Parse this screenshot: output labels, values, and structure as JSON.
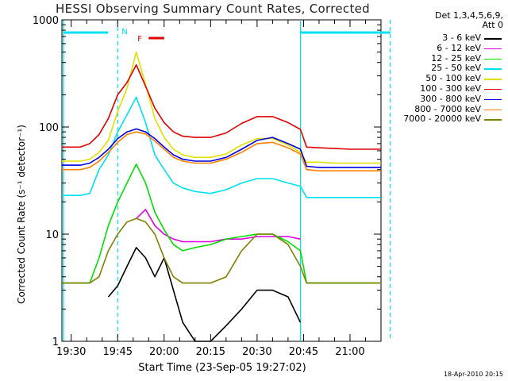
{
  "chart_data": {
    "type": "line",
    "title": "HESSI Observing Summary Count Rates, Corrected",
    "xlabel": "Start Time (23-Sep-05 19:27:02)",
    "ylabel": "Corrected Count Rate (s⁻¹ detector⁻¹)",
    "y_scale": "log",
    "ylim": [
      1,
      1000
    ],
    "xlim": [
      "19:27",
      "21:10"
    ],
    "x_ticks": [
      "19:30",
      "19:45",
      "20:00",
      "20:15",
      "20:30",
      "20:45",
      "21:00"
    ],
    "y_ticks": [
      "1",
      "10",
      "100",
      "1000"
    ],
    "detector_info": [
      "Det 1,3,4,5,6,9,",
      "Att 0"
    ],
    "annotations": {
      "night_bar": "N",
      "flare_bar": "F"
    },
    "night_markers": [
      "19:45",
      "21:13"
    ],
    "footer_stamp": "18-Apr-2010 20:15",
    "x": [
      "19:27",
      "19:33",
      "19:36",
      "19:39",
      "19:42",
      "19:45",
      "19:48",
      "19:51",
      "19:54",
      "19:57",
      "20:00",
      "20:03",
      "20:06",
      "20:10",
      "20:15",
      "20:20",
      "20:25",
      "20:30",
      "20:35",
      "20:40",
      "20:44",
      "20:46",
      "20:50",
      "20:55",
      "21:00",
      "21:05",
      "21:10"
    ],
    "series": [
      {
        "name": "3 - 6 keV",
        "color": "#000000",
        "values": [
          null,
          null,
          null,
          null,
          2.6,
          3.3,
          5,
          7.5,
          6,
          4,
          6,
          3,
          1.5,
          1,
          1,
          1.4,
          2,
          3,
          3,
          2.6,
          1.5,
          null,
          null,
          null,
          null,
          null,
          null
        ]
      },
      {
        "name": "6 - 12 keV",
        "color": "#e000e0",
        "values": [
          null,
          null,
          null,
          null,
          null,
          null,
          null,
          14,
          17,
          12,
          10,
          9,
          8.5,
          8.5,
          8.5,
          9,
          9,
          9.5,
          9.5,
          9.5,
          9,
          null,
          null,
          null,
          null,
          null,
          null
        ]
      },
      {
        "name": "12 - 25 keV",
        "color": "#00e000",
        "values": [
          3.5,
          3.5,
          3.5,
          6,
          12,
          20,
          30,
          45,
          30,
          16,
          11,
          8,
          7,
          7.5,
          8,
          9,
          9.5,
          10,
          10,
          8.5,
          7,
          3.5,
          3.5,
          3.5,
          3.5,
          3.5,
          3.5
        ]
      },
      {
        "name": "25 - 50 keV",
        "color": "#00e0f0",
        "values": [
          23,
          23,
          24,
          40,
          55,
          90,
          130,
          190,
          110,
          55,
          40,
          30,
          27,
          25,
          24,
          26,
          30,
          33,
          33,
          30,
          28,
          22,
          22,
          22,
          22,
          22,
          22
        ]
      },
      {
        "name": "50 - 100 keV",
        "color": "#e0e000",
        "values": [
          48,
          48,
          50,
          58,
          75,
          140,
          230,
          500,
          250,
          120,
          80,
          62,
          55,
          52,
          52,
          56,
          68,
          78,
          78,
          68,
          58,
          47,
          47,
          46,
          46,
          46,
          46
        ]
      },
      {
        "name": "100 - 300 keV",
        "color": "#e00000",
        "values": [
          65,
          65,
          70,
          85,
          120,
          200,
          260,
          380,
          240,
          150,
          110,
          90,
          82,
          80,
          80,
          88,
          108,
          125,
          125,
          110,
          95,
          65,
          64,
          63,
          62,
          62,
          62
        ]
      },
      {
        "name": "300 - 800 keV",
        "color": "#0000e0",
        "values": [
          44,
          44,
          46,
          52,
          62,
          78,
          90,
          96,
          90,
          78,
          65,
          55,
          50,
          48,
          48,
          52,
          62,
          75,
          80,
          70,
          62,
          43,
          42,
          42,
          42,
          42,
          42
        ]
      },
      {
        "name": "800 - 7000 keV",
        "color": "#ff8000",
        "values": [
          40,
          40,
          42,
          48,
          58,
          72,
          85,
          90,
          86,
          74,
          62,
          52,
          48,
          46,
          46,
          50,
          58,
          70,
          72,
          64,
          56,
          40,
          39,
          39,
          39,
          39,
          39
        ]
      },
      {
        "name": "7000 - 20000 keV",
        "color": "#808000",
        "values": [
          3.5,
          3.5,
          3.5,
          4,
          7,
          10,
          13,
          14,
          13,
          10,
          6,
          4,
          3.5,
          3.5,
          3.5,
          4,
          7,
          10,
          10,
          8,
          5,
          3.5,
          3.5,
          3.5,
          3.5,
          3.5,
          3.5
        ]
      }
    ]
  }
}
